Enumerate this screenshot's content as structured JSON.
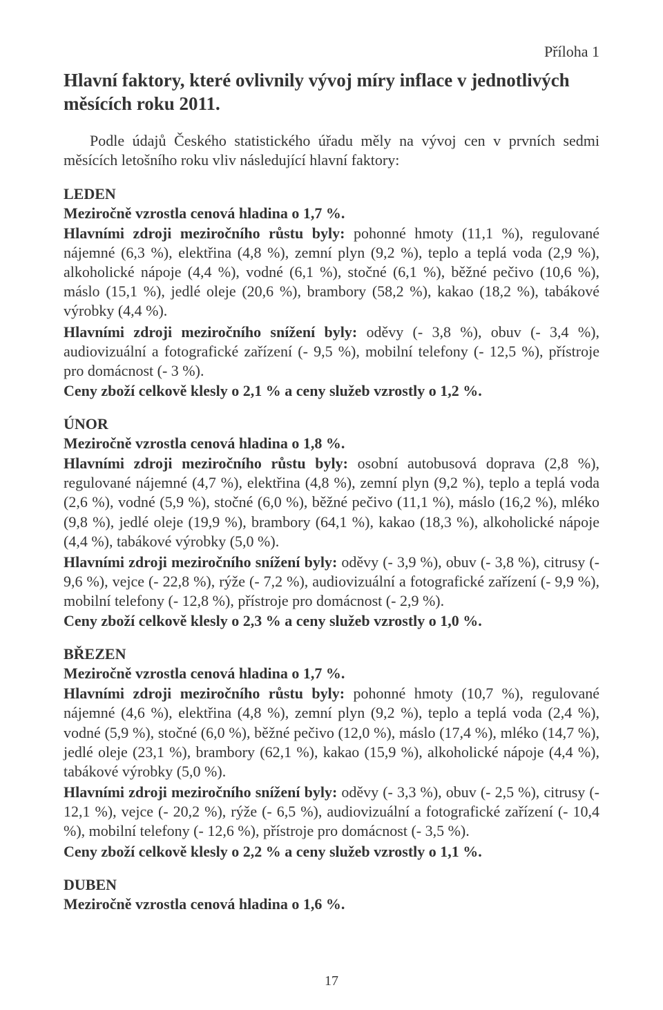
{
  "appendix": "Příloha 1",
  "title": "Hlavní faktory, které ovlivnily vývoj míry inflace v jednotlivých měsících roku 2011.",
  "intro": "Podle údajů Českého statistického úřadu měly na vývoj cen v prvních sedmi měsících letošního roku vliv následující hlavní faktory:",
  "months": {
    "leden": {
      "name": "LEDEN",
      "headline": "Meziročně vzrostla cenová hladina o 1,7 %.",
      "growth_label": "Hlavními zdroji meziročního růstu byly:",
      "growth_text": " pohonné hmoty (11,1 %), regulované nájemné (6,3 %), elektřina (4,8 %), zemní plyn (9,2 %), teplo a teplá voda (2,9 %), alkoholické nápoje (4,4 %), vodné (6,1 %), stočné (6,1 %), běžné pečivo (10,6 %), máslo (15,1 %), jedlé oleje (20,6 %), brambory (58,2 %), kakao (18,2 %), tabákové výrobky (4,4 %).",
      "decrease_label": "Hlavními zdroji meziročního snížení byly:",
      "decrease_text": " oděvy (- 3,8 %), obuv (- 3,4 %), audiovizuální a fotografické zařízení (- 9,5 %), mobilní telefony (- 12,5 %), přístroje pro domácnost (- 3 %).",
      "summary": "Ceny zboží celkově klesly o 2,1 % a ceny služeb vzrostly o 1,2 %."
    },
    "unor": {
      "name": "ÚNOR",
      "headline": "Meziročně vzrostla cenová hladina o 1,8 %.",
      "growth_label": "Hlavními zdroji meziročního růstu byly:",
      "growth_text": " osobní autobusová doprava (2,8 %), regulované nájemné (4,7 %), elektřina (4,8 %), zemní plyn (9,2 %), teplo a teplá voda (2,6 %), vodné (5,9 %), stočné (6,0 %), běžné pečivo (11,1 %), máslo (16,2 %), mléko (9,8 %), jedlé oleje (19,9 %), brambory (64,1 %), kakao (18,3 %), alkoholické nápoje (4,4 %), tabákové výrobky (5,0 %).",
      "decrease_label": "Hlavními zdroji meziročního snížení byly:",
      "decrease_text": " oděvy (- 3,9 %), obuv (- 3,8 %), citrusy (- 9,6 %), vejce (- 22,8 %), rýže (- 7,2 %), audiovizuální a fotografické zařízení (- 9,9 %), mobilní telefony (- 12,8 %), přístroje pro domácnost (- 2,9 %).",
      "summary": "Ceny zboží celkově klesly o 2,3 % a ceny služeb vzrostly o 1,0 %."
    },
    "brezen": {
      "name": "BŘEZEN",
      "headline": "Meziročně vzrostla cenová hladina o 1,7 %.",
      "growth_label": "Hlavními zdroji meziročního růstu byly:",
      "growth_text": " pohonné hmoty (10,7 %), regulované nájemné (4,6 %), elektřina (4,8 %), zemní plyn (9,2 %), teplo a teplá voda (2,4 %), vodné (5,9 %), stočné (6,0 %), běžné pečivo (12,0 %), máslo (17,4 %), mléko (14,7 %), jedlé oleje (23,1 %), brambory (62,1 %), kakao (15,9 %), alkoholické nápoje (4,4 %), tabákové výrobky (5,0 %).",
      "decrease_label": "Hlavními zdroji meziročního snížení byly:",
      "decrease_text": " oděvy (- 3,3 %), obuv (- 2,5 %), citrusy (- 12,1 %), vejce (- 20,2 %), rýže (- 6,5 %), audiovizuální a fotografické zařízení (- 10,4 %), mobilní telefony (- 12,6 %), přístroje pro domácnost (- 3,5 %).",
      "summary": "Ceny zboží celkově klesly o 2,2 % a ceny služeb vzrostly o 1,1 %."
    },
    "duben": {
      "name": "DUBEN",
      "headline": "Meziročně vzrostla cenová hladina o 1,6 %."
    }
  },
  "page_number": "17",
  "colors": {
    "text": "#333333",
    "background": "#ffffff"
  }
}
